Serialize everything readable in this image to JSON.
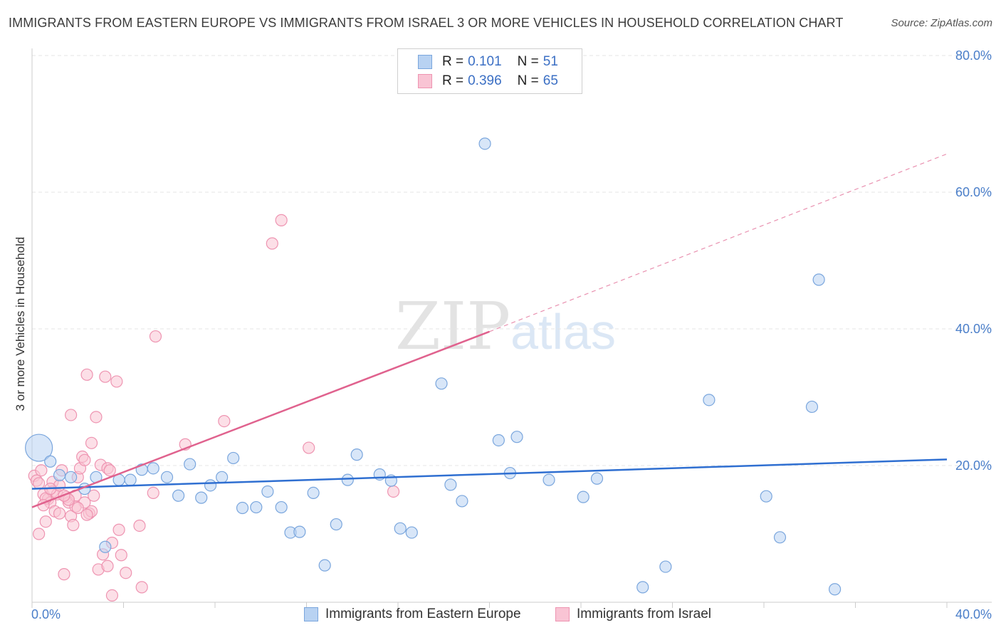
{
  "header": {
    "title": "IMMIGRANTS FROM EASTERN EUROPE VS IMMIGRANTS FROM ISRAEL 3 OR MORE VEHICLES IN HOUSEHOLD CORRELATION CHART",
    "source": "Source: ZipAtlas.com"
  },
  "legend": {
    "blue": {
      "r_label": "R =",
      "r_value": "0.101",
      "n_label": "N =",
      "n_value": "51"
    },
    "pink": {
      "r_label": "R =",
      "r_value": "0.396",
      "n_label": "N =",
      "n_value": "65"
    }
  },
  "watermark": {
    "zip": "ZIP",
    "atlas": "atlas"
  },
  "colors": {
    "blue_fill": "#b8d2f2",
    "blue_stroke": "#7aa6dd",
    "blue_line": "#2f6fd1",
    "pink_fill": "#f9c4d4",
    "pink_stroke": "#ee94b1",
    "pink_line": "#e0628e",
    "tick_label": "#4a7ec9",
    "grid": "#e4e4e4"
  },
  "chart_data": {
    "type": "scatter",
    "title": "IMMIGRANTS FROM EASTERN EUROPE VS IMMIGRANTS FROM ISRAEL 3 OR MORE VEHICLES IN HOUSEHOLD CORRELATION CHART",
    "xlabel": "",
    "ylabel": "3 or more Vehicles in Household",
    "xlim": [
      0,
      40
    ],
    "ylim": [
      0,
      80
    ],
    "x_tick_labels": [
      "0.0%",
      "40.0%"
    ],
    "y_ticks": [
      20,
      40,
      60,
      80
    ],
    "y_tick_labels": [
      "20.0%",
      "40.0%",
      "60.0%",
      "80.0%"
    ],
    "grid": true,
    "legend_position": "top-center",
    "series": [
      {
        "name": "Immigrants from Eastern Europe",
        "color": "blue",
        "trend": {
          "x": [
            0,
            40
          ],
          "y": [
            16.6,
            20.9
          ],
          "style": "solid"
        },
        "points": [
          {
            "x": 0.3,
            "y": 22.6,
            "big": true
          },
          {
            "x": 0.8,
            "y": 20.6
          },
          {
            "x": 1.2,
            "y": 18.6
          },
          {
            "x": 1.7,
            "y": 18.3
          },
          {
            "x": 2.3,
            "y": 16.6
          },
          {
            "x": 2.8,
            "y": 18.3
          },
          {
            "x": 3.2,
            "y": 8.1
          },
          {
            "x": 3.8,
            "y": 17.9
          },
          {
            "x": 4.3,
            "y": 17.9
          },
          {
            "x": 4.8,
            "y": 19.4
          },
          {
            "x": 5.3,
            "y": 19.6
          },
          {
            "x": 5.9,
            "y": 18.3
          },
          {
            "x": 6.4,
            "y": 15.6
          },
          {
            "x": 6.9,
            "y": 20.2
          },
          {
            "x": 7.4,
            "y": 15.3
          },
          {
            "x": 7.8,
            "y": 17.1
          },
          {
            "x": 8.3,
            "y": 18.3
          },
          {
            "x": 8.8,
            "y": 21.1
          },
          {
            "x": 9.2,
            "y": 13.8
          },
          {
            "x": 9.8,
            "y": 13.9
          },
          {
            "x": 10.3,
            "y": 16.2
          },
          {
            "x": 10.9,
            "y": 13.9
          },
          {
            "x": 11.3,
            "y": 10.2
          },
          {
            "x": 11.7,
            "y": 10.3
          },
          {
            "x": 12.3,
            "y": 16.0
          },
          {
            "x": 12.8,
            "y": 5.4
          },
          {
            "x": 13.3,
            "y": 11.4
          },
          {
            "x": 13.8,
            "y": 17.9
          },
          {
            "x": 14.2,
            "y": 21.6
          },
          {
            "x": 15.2,
            "y": 18.7
          },
          {
            "x": 15.7,
            "y": 17.8
          },
          {
            "x": 16.1,
            "y": 10.8
          },
          {
            "x": 16.6,
            "y": 10.2
          },
          {
            "x": 17.9,
            "y": 32.0
          },
          {
            "x": 18.3,
            "y": 17.2
          },
          {
            "x": 18.8,
            "y": 14.8
          },
          {
            "x": 19.8,
            "y": 67.1
          },
          {
            "x": 20.4,
            "y": 23.7
          },
          {
            "x": 20.9,
            "y": 18.9
          },
          {
            "x": 21.2,
            "y": 24.2
          },
          {
            "x": 22.6,
            "y": 17.9
          },
          {
            "x": 24.1,
            "y": 15.4
          },
          {
            "x": 24.7,
            "y": 18.1
          },
          {
            "x": 26.7,
            "y": 2.2
          },
          {
            "x": 27.7,
            "y": 5.2
          },
          {
            "x": 29.6,
            "y": 29.6
          },
          {
            "x": 32.1,
            "y": 15.5
          },
          {
            "x": 32.7,
            "y": 9.5
          },
          {
            "x": 34.1,
            "y": 28.6
          },
          {
            "x": 34.4,
            "y": 47.2
          },
          {
            "x": 35.1,
            "y": 1.9
          }
        ]
      },
      {
        "name": "Immigrants from Israel",
        "color": "pink",
        "trend": {
          "x": [
            0,
            20
          ],
          "y": [
            13.9,
            39.6
          ],
          "style": "solid",
          "dashed_to": {
            "x": 40,
            "y": 65.6
          }
        },
        "points": [
          {
            "x": 0.1,
            "y": 18.5
          },
          {
            "x": 0.2,
            "y": 17.8
          },
          {
            "x": 0.3,
            "y": 10.0
          },
          {
            "x": 0.4,
            "y": 19.3
          },
          {
            "x": 0.5,
            "y": 15.8
          },
          {
            "x": 0.6,
            "y": 11.8
          },
          {
            "x": 0.7,
            "y": 15.1
          },
          {
            "x": 0.8,
            "y": 14.6
          },
          {
            "x": 0.9,
            "y": 17.6
          },
          {
            "x": 0.9,
            "y": 16.2
          },
          {
            "x": 1.0,
            "y": 13.3
          },
          {
            "x": 1.1,
            "y": 15.8
          },
          {
            "x": 1.2,
            "y": 13.0
          },
          {
            "x": 1.3,
            "y": 19.3
          },
          {
            "x": 1.4,
            "y": 4.1
          },
          {
            "x": 1.5,
            "y": 15.4
          },
          {
            "x": 1.6,
            "y": 14.6
          },
          {
            "x": 1.7,
            "y": 12.6
          },
          {
            "x": 1.7,
            "y": 27.4
          },
          {
            "x": 1.8,
            "y": 11.3
          },
          {
            "x": 1.9,
            "y": 15.6
          },
          {
            "x": 2.0,
            "y": 18.3
          },
          {
            "x": 2.1,
            "y": 19.6
          },
          {
            "x": 2.2,
            "y": 21.3
          },
          {
            "x": 2.3,
            "y": 20.8
          },
          {
            "x": 2.3,
            "y": 14.6
          },
          {
            "x": 2.4,
            "y": 33.3
          },
          {
            "x": 2.5,
            "y": 13.0
          },
          {
            "x": 2.6,
            "y": 23.3
          },
          {
            "x": 2.6,
            "y": 13.3
          },
          {
            "x": 2.7,
            "y": 15.6
          },
          {
            "x": 2.8,
            "y": 27.1
          },
          {
            "x": 2.9,
            "y": 4.8
          },
          {
            "x": 3.0,
            "y": 20.1
          },
          {
            "x": 3.1,
            "y": 7.0
          },
          {
            "x": 3.2,
            "y": 33.0
          },
          {
            "x": 3.3,
            "y": 19.6
          },
          {
            "x": 3.3,
            "y": 5.3
          },
          {
            "x": 3.4,
            "y": 19.3
          },
          {
            "x": 3.5,
            "y": 8.7
          },
          {
            "x": 3.5,
            "y": 1.0
          },
          {
            "x": 3.7,
            "y": 32.3
          },
          {
            "x": 3.8,
            "y": 10.6
          },
          {
            "x": 3.9,
            "y": 6.9
          },
          {
            "x": 4.1,
            "y": 4.3
          },
          {
            "x": 4.7,
            "y": 11.2
          },
          {
            "x": 4.8,
            "y": 2.2
          },
          {
            "x": 5.3,
            "y": 16.0
          },
          {
            "x": 5.4,
            "y": 38.9
          },
          {
            "x": 6.7,
            "y": 23.1
          },
          {
            "x": 8.4,
            "y": 26.5
          },
          {
            "x": 10.5,
            "y": 52.5
          },
          {
            "x": 10.9,
            "y": 55.9
          },
          {
            "x": 12.1,
            "y": 22.6
          },
          {
            "x": 15.8,
            "y": 16.2
          },
          {
            "x": 0.6,
            "y": 15.2
          },
          {
            "x": 1.2,
            "y": 17.1
          },
          {
            "x": 1.9,
            "y": 14.0
          },
          {
            "x": 2.4,
            "y": 12.8
          },
          {
            "x": 0.3,
            "y": 17.4
          },
          {
            "x": 0.8,
            "y": 16.6
          },
          {
            "x": 1.6,
            "y": 15.0
          },
          {
            "x": 2.0,
            "y": 13.8
          },
          {
            "x": 0.5,
            "y": 14.2
          },
          {
            "x": 1.4,
            "y": 15.6
          }
        ]
      }
    ]
  },
  "bottom_legend": {
    "blue_label": "Immigrants from Eastern Europe",
    "pink_label": "Immigrants from Israel"
  }
}
